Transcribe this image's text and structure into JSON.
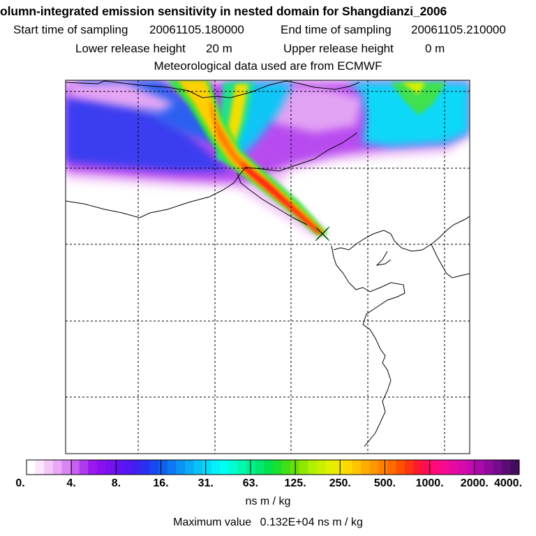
{
  "titles": {
    "main": "olumn-integrated emission sensitivity in nested domain for Shangdianzi_2006",
    "start_label": "Start time of sampling",
    "start_value": "20061105.180000",
    "end_label": "End time of sampling",
    "end_value": "20061105.210000",
    "lower_label": "Lower release height",
    "lower_value": "20 m",
    "upper_label": "Upper release height",
    "upper_value": "0 m",
    "met": "Meteorological data used are from ECMWF"
  },
  "colorbar": {
    "ticks": [
      "0.",
      "4.",
      "8.",
      "16.",
      "31.",
      "63.",
      "125.",
      "250.",
      "500.",
      "1000.",
      "2000.",
      "4000."
    ],
    "colors": [
      "#ffffff",
      "#fbe6fb",
      "#f3c8f7",
      "#e8a8f5",
      "#d986f2",
      "#c560ef",
      "#b03aee",
      "#9a18ee",
      "#8a10ef",
      "#7810f0",
      "#6612f0",
      "#5416f2",
      "#4020f0",
      "#2a30f0",
      "#1848f0",
      "#1060f0",
      "#0e78f2",
      "#0c92f4",
      "#0aaaf6",
      "#08c2f8",
      "#06dafa",
      "#04f0fc",
      "#00fff0",
      "#00fcd0",
      "#00f8b0",
      "#00f090",
      "#00e870",
      "#00e050",
      "#18e030",
      "#40e018",
      "#68e008",
      "#90e800",
      "#b0f000",
      "#c8f000",
      "#e0f000",
      "#f0e800",
      "#ffd800",
      "#ffc400",
      "#ffae00",
      "#ff9800",
      "#ff8000",
      "#ff6a00",
      "#ff5000",
      "#ff3410",
      "#ff1830",
      "#ff0a58",
      "#ff0a7a",
      "#f50a90",
      "#e80aa0",
      "#d80aac",
      "#c40ab0",
      "#ac08ac",
      "#900aa0",
      "#740c8c",
      "#5c0c74",
      "#440c5c"
    ],
    "units": "ns m / kg",
    "max_label": "Maximum value",
    "max_value": "0.132E+04",
    "max_units": "ns m / kg"
  },
  "map": {
    "release_site": "Shangdianzi",
    "marker": "x-marker-icon"
  }
}
